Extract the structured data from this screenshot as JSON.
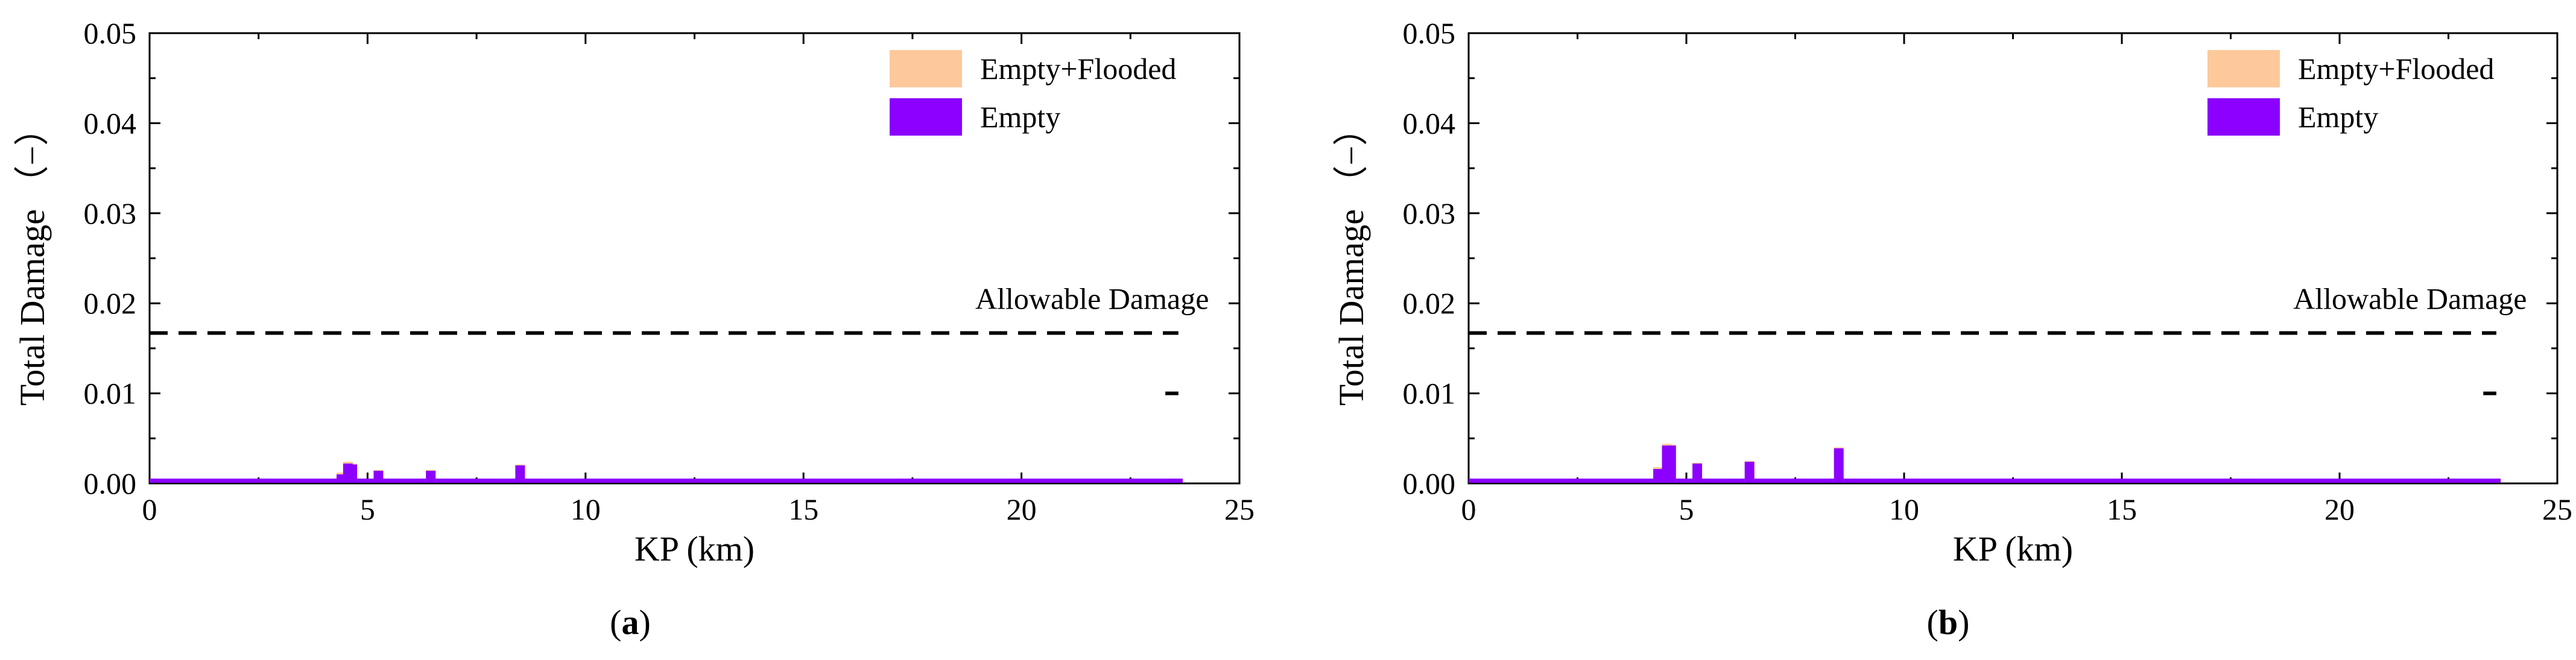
{
  "chart_data": [
    {
      "type": "bar",
      "panel_label": "a",
      "xlabel": "KP (km)",
      "ylabel": "Total Damage （−）",
      "xlim": [
        0,
        25
      ],
      "ylim": [
        0,
        0.05
      ],
      "xticks": [
        "0",
        "5",
        "10",
        "15",
        "20",
        "25"
      ],
      "yticks": [
        "0.00",
        "0.01",
        "0.02",
        "0.03",
        "0.04",
        "0.05"
      ],
      "legend_position": "top-right",
      "series": [
        {
          "name": "Empty+Flooded",
          "color": "#fdc99b",
          "points": [
            {
              "x": 4.4,
              "y": 0.0012
            },
            {
              "x": 4.55,
              "y": 0.0024
            },
            {
              "x": 4.65,
              "y": 0.0022
            },
            {
              "x": 5.25,
              "y": 0.0015
            },
            {
              "x": 6.45,
              "y": 0.0015
            },
            {
              "x": 8.5,
              "y": 0.0021
            }
          ]
        },
        {
          "name": "Empty",
          "color": "#8b00ff",
          "points": [
            {
              "x": 4.4,
              "y": 0.001
            },
            {
              "x": 4.55,
              "y": 0.0022
            },
            {
              "x": 4.65,
              "y": 0.0021
            },
            {
              "x": 5.25,
              "y": 0.0014
            },
            {
              "x": 6.45,
              "y": 0.0014
            },
            {
              "x": 8.5,
              "y": 0.002
            }
          ]
        }
      ],
      "baseline": {
        "x": [
          0,
          23.7
        ],
        "y": 0.0003,
        "color": "#8b00ff"
      },
      "allowable_damage": {
        "label": "Allowable Damage",
        "y": 0.0167,
        "x": [
          0,
          23.6
        ]
      },
      "short_marker": {
        "x": [
          23.3,
          23.6
        ],
        "y": 0.01
      }
    },
    {
      "type": "bar",
      "panel_label": "b",
      "xlabel": "KP (km)",
      "ylabel": "Total Damage （−）",
      "xlim": [
        0,
        25
      ],
      "ylim": [
        0,
        0.05
      ],
      "xticks": [
        "0",
        "5",
        "10",
        "15",
        "20",
        "25"
      ],
      "yticks": [
        "0.00",
        "0.01",
        "0.02",
        "0.03",
        "0.04",
        "0.05"
      ],
      "legend_position": "top-right",
      "series": [
        {
          "name": "Empty+Flooded",
          "color": "#fdc99b",
          "points": [
            {
              "x": 4.35,
              "y": 0.0018
            },
            {
              "x": 4.55,
              "y": 0.0044
            },
            {
              "x": 4.65,
              "y": 0.0043
            },
            {
              "x": 5.25,
              "y": 0.0023
            },
            {
              "x": 6.45,
              "y": 0.0025
            },
            {
              "x": 8.5,
              "y": 0.004
            }
          ]
        },
        {
          "name": "Empty",
          "color": "#8b00ff",
          "points": [
            {
              "x": 4.35,
              "y": 0.0016
            },
            {
              "x": 4.55,
              "y": 0.0042
            },
            {
              "x": 4.65,
              "y": 0.0042
            },
            {
              "x": 5.25,
              "y": 0.0022
            },
            {
              "x": 6.45,
              "y": 0.0024
            },
            {
              "x": 8.5,
              "y": 0.0039
            }
          ]
        }
      ],
      "baseline": {
        "x": [
          0,
          23.7
        ],
        "y": 0.0003,
        "color": "#8b00ff"
      },
      "allowable_damage": {
        "label": "Allowable Damage",
        "y": 0.0167,
        "x": [
          0,
          23.6
        ]
      },
      "short_marker": {
        "x": [
          23.3,
          23.6
        ],
        "y": 0.01
      }
    }
  ]
}
